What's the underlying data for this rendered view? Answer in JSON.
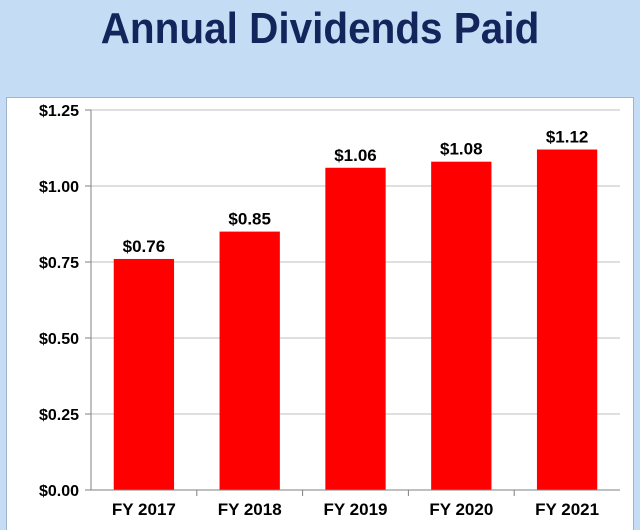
{
  "chart_data": {
    "type": "bar",
    "title": "Annual Dividends Paid",
    "categories": [
      "FY 2017",
      "FY 2018",
      "FY 2019",
      "FY 2020",
      "FY 2021"
    ],
    "values": [
      0.76,
      0.85,
      1.06,
      1.08,
      1.12
    ],
    "data_labels": [
      "$0.76",
      "$0.85",
      "$1.06",
      "$1.08",
      "$1.12"
    ],
    "y_ticks": [
      0,
      0.25,
      0.5,
      0.75,
      1.0,
      1.25
    ],
    "y_tick_labels": [
      "$0.00",
      "$0.25",
      "$0.50",
      "$0.75",
      "$1.00",
      "$1.25"
    ],
    "xlabel": "",
    "ylabel": "",
    "ylim": [
      0,
      1.25
    ],
    "grid": true,
    "legend": "none",
    "bar_color": "#ff0000",
    "title_color": "#14255c",
    "background_color": "#c5dcf5"
  }
}
